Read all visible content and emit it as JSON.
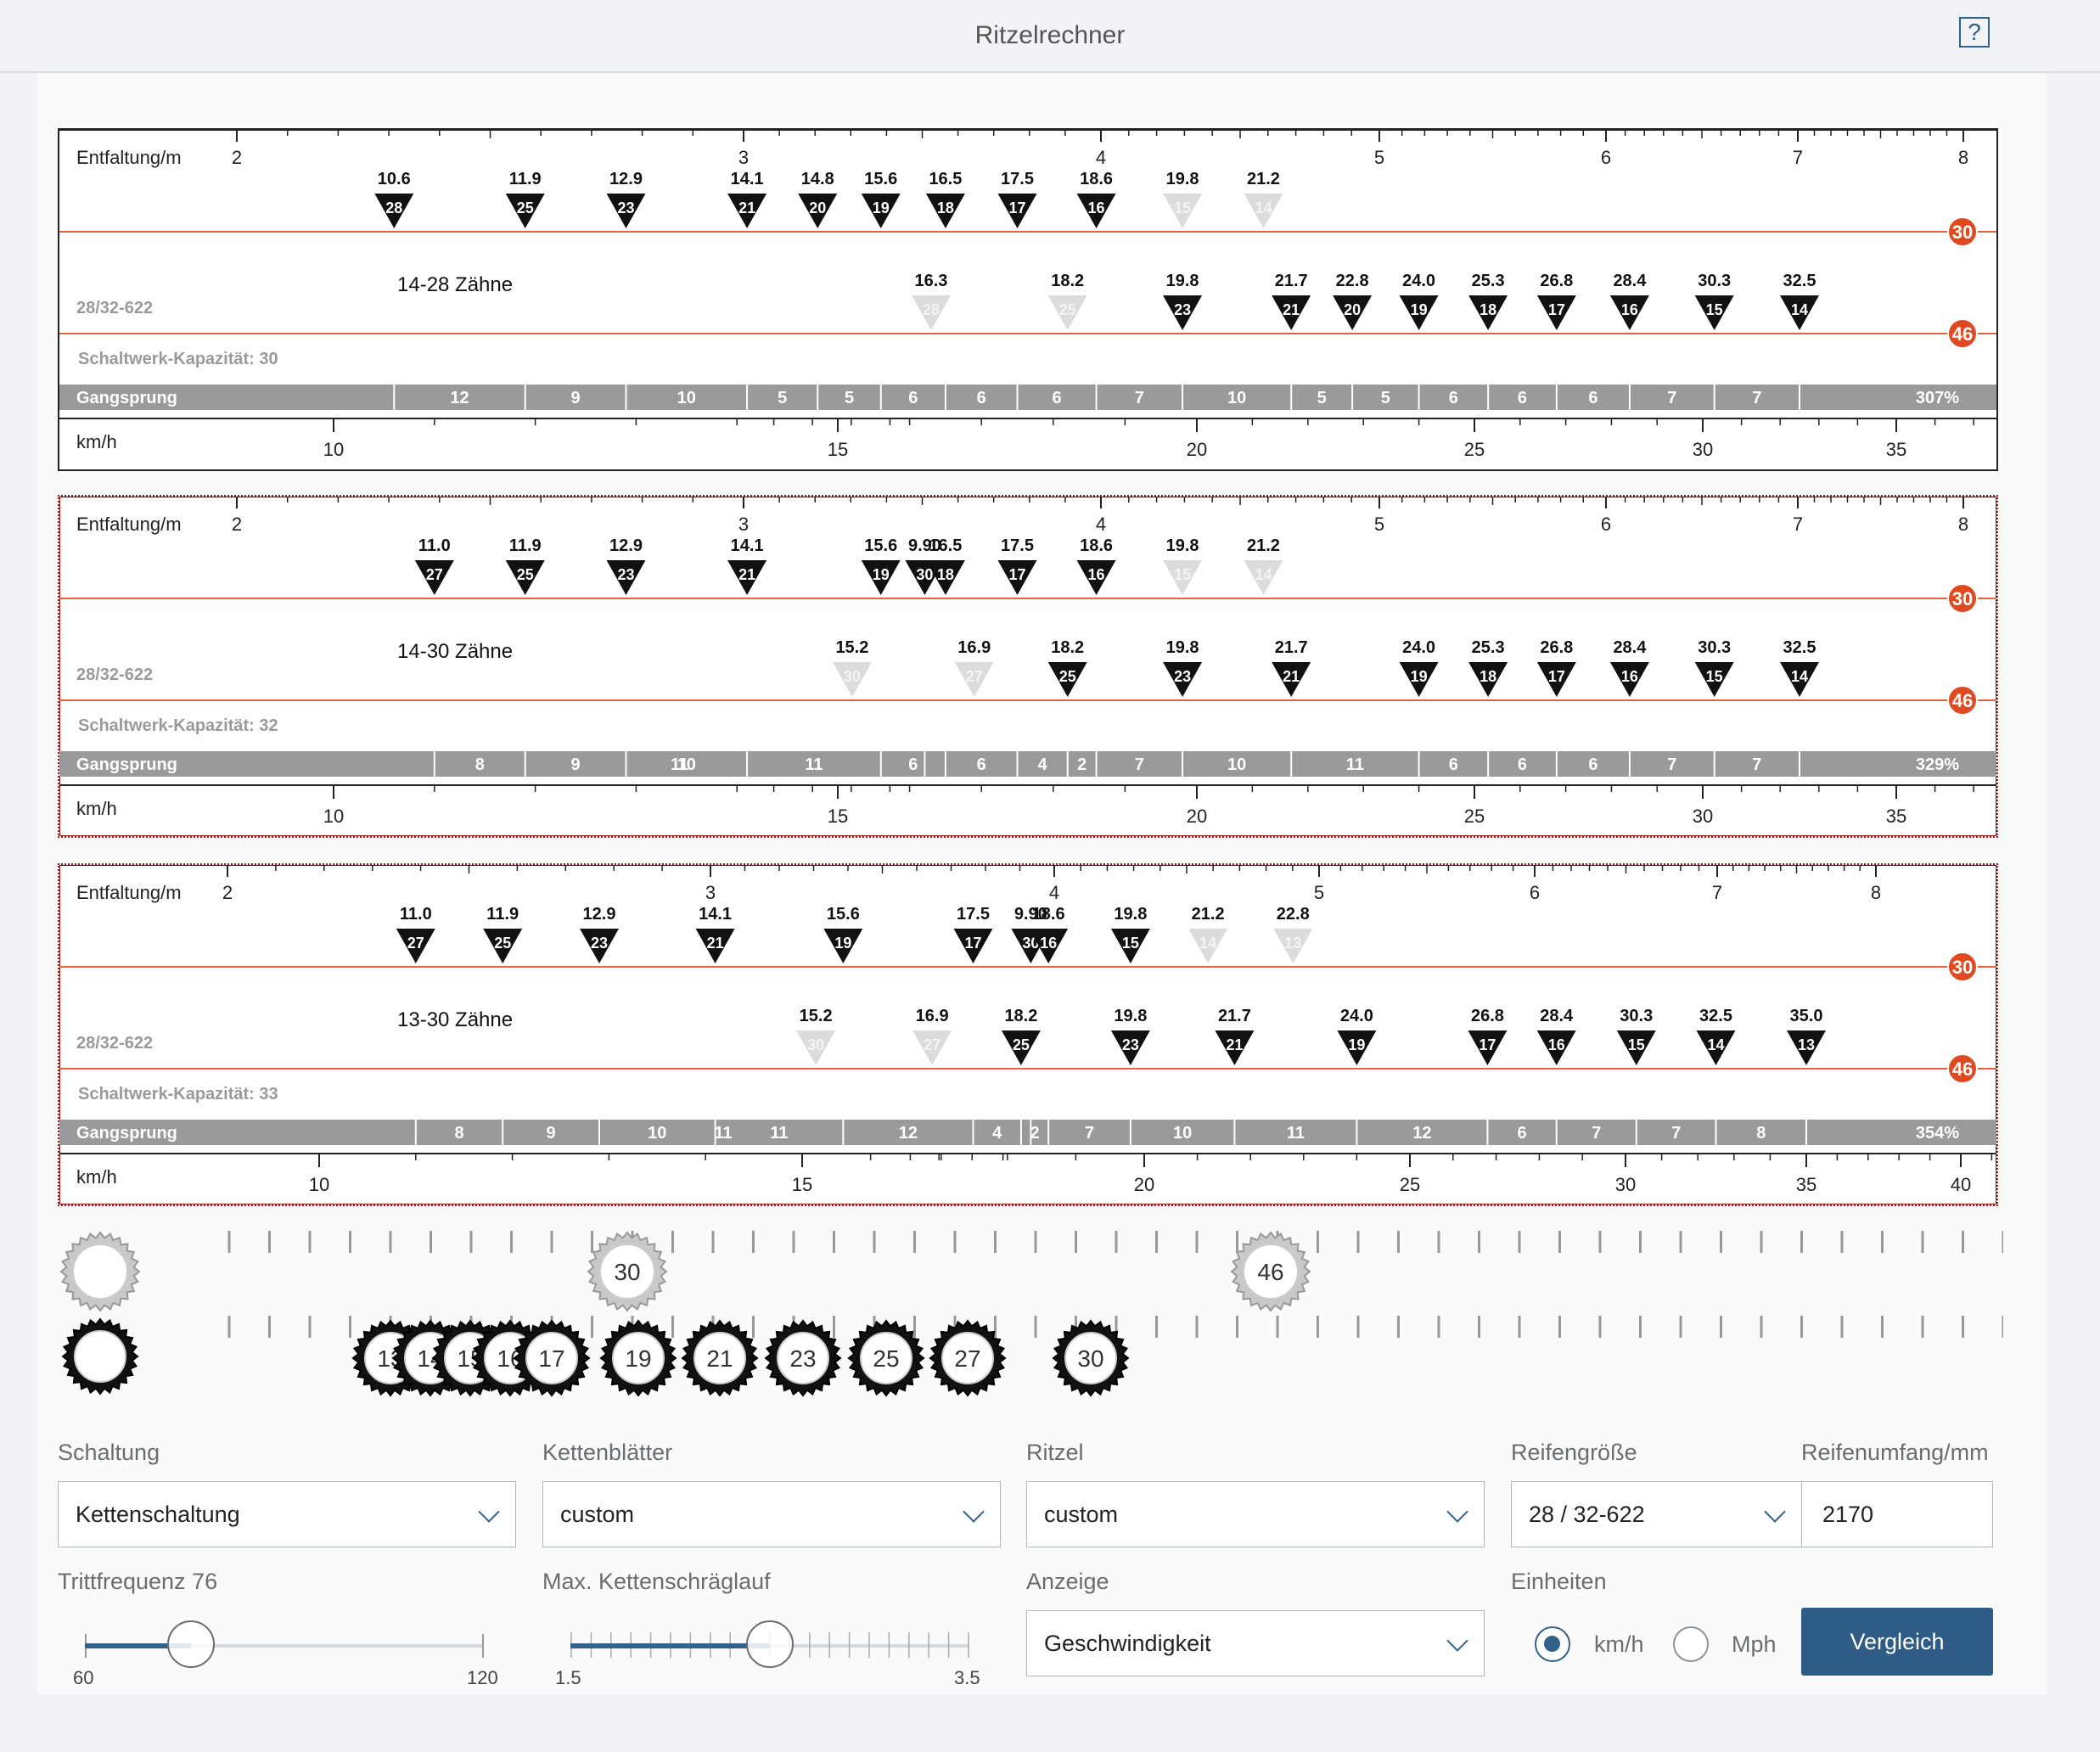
{
  "header": {
    "title": "Ritzelrechner",
    "help_symbol": "?"
  },
  "colors": {
    "accent": "#346187",
    "chainring_line": "#e8603c",
    "gear_black": "#111111",
    "gear_inactive": "#dcdcdc",
    "bar_gray": "#9a9a9a"
  },
  "chart_data": [
    {
      "type": "table",
      "cassette_label": "14-28 Zähne",
      "top_axis_label": "Entfaltung/m",
      "top_axis_ticks": [
        "2",
        "3",
        "4",
        "5",
        "6",
        "7",
        "8"
      ],
      "tire_label": "28/32-622",
      "capacity_label": "Schaltwerk-Kapazität: 30",
      "gangsprung_label": "Gangsprung",
      "gangsprung_values": [
        "12",
        "9",
        "10",
        "5",
        "5",
        "6",
        "6",
        "6",
        "7",
        "10",
        "5",
        "5",
        "6",
        "6",
        "6",
        "7",
        "7"
      ],
      "gangsprung_total": "307%",
      "bottom_axis_label": "km/h",
      "bottom_axis_ticks": [
        "10",
        "15",
        "20",
        "25",
        "30",
        "35"
      ],
      "chainrings": [
        {
          "teeth": "30",
          "gears": [
            {
              "value": "10.6",
              "teeth": "28",
              "active": true
            },
            {
              "value": "11.9",
              "teeth": "25",
              "active": true
            },
            {
              "value": "12.9",
              "teeth": "23",
              "active": true
            },
            {
              "value": "14.1",
              "teeth": "21",
              "active": true
            },
            {
              "value": "14.8",
              "teeth": "20",
              "active": true
            },
            {
              "value": "15.6",
              "teeth": "19",
              "active": true
            },
            {
              "value": "16.5",
              "teeth": "18",
              "active": true
            },
            {
              "value": "17.5",
              "teeth": "17",
              "active": true
            },
            {
              "value": "18.6",
              "teeth": "16",
              "active": true
            },
            {
              "value": "19.8",
              "teeth": "15",
              "active": false
            },
            {
              "value": "21.2",
              "teeth": "14",
              "active": false
            }
          ]
        },
        {
          "teeth": "46",
          "gears": [
            {
              "value": "16.3",
              "teeth": "28",
              "active": false
            },
            {
              "value": "18.2",
              "teeth": "25",
              "active": false
            },
            {
              "value": "19.8",
              "teeth": "23",
              "active": true
            },
            {
              "value": "21.7",
              "teeth": "21",
              "active": true
            },
            {
              "value": "22.8",
              "teeth": "20",
              "active": true
            },
            {
              "value": "24.0",
              "teeth": "19",
              "active": true
            },
            {
              "value": "25.3",
              "teeth": "18",
              "active": true
            },
            {
              "value": "26.8",
              "teeth": "17",
              "active": true
            },
            {
              "value": "28.4",
              "teeth": "16",
              "active": true
            },
            {
              "value": "30.3",
              "teeth": "15",
              "active": true
            },
            {
              "value": "32.5",
              "teeth": "14",
              "active": true
            }
          ]
        }
      ]
    },
    {
      "type": "table",
      "cassette_label": "14-30 Zähne",
      "top_axis_label": "Entfaltung/m",
      "top_axis_ticks": [
        "2",
        "3",
        "4",
        "5",
        "6",
        "7",
        "8"
      ],
      "tire_label": "28/32-622",
      "capacity_label": "Schaltwerk-Kapazität: 32",
      "gangsprung_label": "Gangsprung",
      "gangsprung_values": [
        "11",
        "8",
        "9",
        "10",
        "11",
        "6",
        "6",
        "4",
        "2",
        "7",
        "10",
        "11",
        "6",
        "6",
        "6",
        "7",
        "7"
      ],
      "gangsprung_total": "329%",
      "bottom_axis_label": "km/h",
      "bottom_axis_ticks": [
        "10",
        "15",
        "20",
        "25",
        "30",
        "35"
      ],
      "chainrings": [
        {
          "teeth": "30",
          "gears": [
            {
              "value": "9.90",
              "teeth": "30",
              "active": true
            },
            {
              "value": "11.0",
              "teeth": "27",
              "active": true
            },
            {
              "value": "11.9",
              "teeth": "25",
              "active": true
            },
            {
              "value": "12.9",
              "teeth": "23",
              "active": true
            },
            {
              "value": "14.1",
              "teeth": "21",
              "active": true
            },
            {
              "value": "15.6",
              "teeth": "19",
              "active": true
            },
            {
              "value": "16.5",
              "teeth": "18",
              "active": true
            },
            {
              "value": "17.5",
              "teeth": "17",
              "active": true
            },
            {
              "value": "18.6",
              "teeth": "16",
              "active": true
            },
            {
              "value": "19.8",
              "teeth": "15",
              "active": false
            },
            {
              "value": "21.2",
              "teeth": "14",
              "active": false
            }
          ]
        },
        {
          "teeth": "46",
          "gears": [
            {
              "value": "15.2",
              "teeth": "30",
              "active": false
            },
            {
              "value": "16.9",
              "teeth": "27",
              "active": false
            },
            {
              "value": "18.2",
              "teeth": "25",
              "active": true
            },
            {
              "value": "19.8",
              "teeth": "23",
              "active": true
            },
            {
              "value": "21.7",
              "teeth": "21",
              "active": true
            },
            {
              "value": "24.0",
              "teeth": "19",
              "active": true
            },
            {
              "value": "25.3",
              "teeth": "18",
              "active": true
            },
            {
              "value": "26.8",
              "teeth": "17",
              "active": true
            },
            {
              "value": "28.4",
              "teeth": "16",
              "active": true
            },
            {
              "value": "30.3",
              "teeth": "15",
              "active": true
            },
            {
              "value": "32.5",
              "teeth": "14",
              "active": true
            }
          ]
        }
      ]
    },
    {
      "type": "table",
      "cassette_label": "13-30 Zähne",
      "top_axis_label": "Entfaltung/m",
      "top_axis_ticks": [
        "2",
        "3",
        "4",
        "5",
        "6",
        "7",
        "8"
      ],
      "tire_label": "28/32-622",
      "capacity_label": "Schaltwerk-Kapazität: 33",
      "gangsprung_label": "Gangsprung",
      "gangsprung_values": [
        "11",
        "8",
        "9",
        "10",
        "11",
        "12",
        "4",
        "2",
        "7",
        "10",
        "11",
        "12",
        "6",
        "7",
        "7",
        "8"
      ],
      "gangsprung_total": "354%",
      "bottom_axis_label": "km/h",
      "bottom_axis_ticks": [
        "10",
        "15",
        "20",
        "25",
        "30",
        "35",
        "40"
      ],
      "chainrings": [
        {
          "teeth": "30",
          "gears": [
            {
              "value": "9.90",
              "teeth": "30",
              "active": true
            },
            {
              "value": "11.0",
              "teeth": "27",
              "active": true
            },
            {
              "value": "11.9",
              "teeth": "25",
              "active": true
            },
            {
              "value": "12.9",
              "teeth": "23",
              "active": true
            },
            {
              "value": "14.1",
              "teeth": "21",
              "active": true
            },
            {
              "value": "15.6",
              "teeth": "19",
              "active": true
            },
            {
              "value": "17.5",
              "teeth": "17",
              "active": true
            },
            {
              "value": "18.6",
              "teeth": "16",
              "active": true
            },
            {
              "value": "19.8",
              "teeth": "15",
              "active": true
            },
            {
              "value": "21.2",
              "teeth": "14",
              "active": false
            },
            {
              "value": "22.8",
              "teeth": "13",
              "active": false
            }
          ]
        },
        {
          "teeth": "46",
          "gears": [
            {
              "value": "15.2",
              "teeth": "30",
              "active": false
            },
            {
              "value": "16.9",
              "teeth": "27",
              "active": false
            },
            {
              "value": "18.2",
              "teeth": "25",
              "active": true
            },
            {
              "value": "19.8",
              "teeth": "23",
              "active": true
            },
            {
              "value": "21.7",
              "teeth": "21",
              "active": true
            },
            {
              "value": "24.0",
              "teeth": "19",
              "active": true
            },
            {
              "value": "26.8",
              "teeth": "17",
              "active": true
            },
            {
              "value": "28.4",
              "teeth": "16",
              "active": true
            },
            {
              "value": "30.3",
              "teeth": "15",
              "active": true
            },
            {
              "value": "32.5",
              "teeth": "14",
              "active": true
            },
            {
              "value": "35.0",
              "teeth": "13",
              "active": true
            }
          ]
        }
      ]
    }
  ],
  "gear_editor": {
    "chainrings": [
      "30",
      "46"
    ],
    "sprockets": [
      "13",
      "14",
      "15",
      "16",
      "17",
      "19",
      "21",
      "23",
      "25",
      "27",
      "30"
    ]
  },
  "controls": {
    "schaltung": {
      "label": "Schaltung",
      "value": "Kettenschaltung"
    },
    "kettenblaetter": {
      "label": "Kettenblätter",
      "value": "custom"
    },
    "ritzel": {
      "label": "Ritzel",
      "value": "custom"
    },
    "reifengroesse": {
      "label": "Reifengröße",
      "value": "28 / 32-622"
    },
    "reifenumfang": {
      "label": "Reifenumfang/mm",
      "value": "2170"
    },
    "trittfrequenz": {
      "label": "Trittfrequenz 76",
      "min": "60",
      "max": "120",
      "value": 76
    },
    "kettenschraeglauf": {
      "label": "Max. Kettenschräglauf",
      "min": "1.5",
      "max": "3.5",
      "value": 2.5
    },
    "anzeige": {
      "label": "Anzeige",
      "value": "Geschwindigkeit"
    },
    "einheiten": {
      "label": "Einheiten",
      "options": [
        "km/h",
        "Mph"
      ],
      "selected": "km/h"
    },
    "vergleich_label": "Vergleich"
  }
}
